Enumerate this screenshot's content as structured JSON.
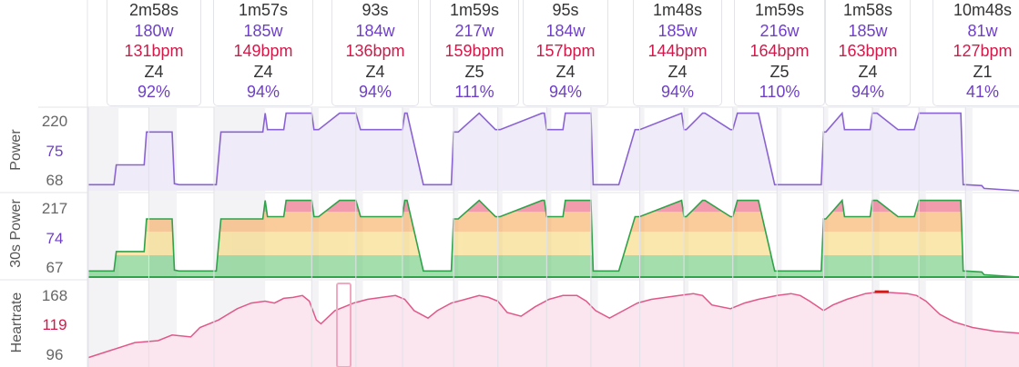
{
  "intervals": [
    {
      "dur": "2m58s",
      "power": "180w",
      "hr": "131bpm",
      "zone": "Z4",
      "pct": "92%"
    },
    {
      "dur": "1m57s",
      "power": "185w",
      "hr": "149bpm",
      "zone": "Z4",
      "pct": "94%"
    },
    {
      "dur": "93s",
      "power": "184w",
      "hr": "136bpm",
      "zone": "Z4",
      "pct": "94%"
    },
    {
      "dur": "1m59s",
      "power": "217w",
      "hr": "159bpm",
      "zone": "Z5",
      "pct": "111%"
    },
    {
      "dur": "95s",
      "power": "184w",
      "hr": "157bpm",
      "zone": "Z4",
      "pct": "94%"
    },
    {
      "dur": "1m48s",
      "power": "185w",
      "hr": "144bpm",
      "zone": "Z4",
      "pct": "94%"
    },
    {
      "dur": "1m59s",
      "power": "216w",
      "hr": "164bpm",
      "zone": "Z5",
      "pct": "110%"
    },
    {
      "dur": "1m58s",
      "power": "185w",
      "hr": "163bpm",
      "zone": "Z4",
      "pct": "94%"
    },
    {
      "dur": "10m48s",
      "power": "81w",
      "hr": "127bpm",
      "zone": "Z1",
      "pct": "41%"
    }
  ],
  "panels": {
    "power": {
      "label": "Power",
      "ticks": [
        "220",
        "75",
        "68"
      ]
    },
    "power30": {
      "label": "30s Power",
      "ticks": [
        "217",
        "74",
        "67"
      ]
    },
    "heartrate": {
      "label": "Heartrate",
      "ticks": [
        "168",
        "119",
        "96"
      ]
    }
  },
  "colors": {
    "power_line": "#8a63d2",
    "power_fill": "#efebf8",
    "hr_line": "#e0588a",
    "hr_fill": "#fbe5ee",
    "zone_green": "#5cc46a",
    "zone_yellow": "#f4d36b",
    "zone_orange": "#f6a24b",
    "zone_red": "#e84a6b"
  },
  "chart_data": [
    {
      "type": "line",
      "title": "",
      "ylabel": "Power",
      "yticks": [
        68,
        75,
        220
      ],
      "x": [
        0,
        11,
        12,
        24,
        25,
        36,
        37,
        39,
        48,
        55,
        57,
        75,
        76,
        77,
        84,
        85,
        96,
        97,
        99,
        108,
        115,
        117,
        135,
        136,
        137,
        144,
        145,
        156,
        157,
        159,
        168,
        175,
        177,
        195,
        196,
        197,
        204,
        205,
        216,
        217,
        219,
        228,
        235,
        237,
        255,
        256,
        257,
        264,
        265,
        276,
        277,
        279,
        288,
        295,
        297,
        315,
        316,
        317,
        324,
        325,
        336,
        337,
        339,
        348,
        355,
        357,
        375,
        376,
        377,
        384,
        385,
        400
      ],
      "values": [
        68,
        68,
        110,
        110,
        180,
        180,
        70,
        68,
        68,
        68,
        180,
        180,
        220,
        185,
        185,
        220,
        220,
        185,
        185,
        220,
        220,
        185,
        185,
        220,
        220,
        68,
        68,
        68,
        180,
        180,
        220,
        185,
        185,
        220,
        220,
        185,
        185,
        220,
        220,
        68,
        68,
        68,
        185,
        185,
        220,
        185,
        185,
        220,
        220,
        185,
        185,
        220,
        220,
        68,
        68,
        68,
        180,
        180,
        220,
        185,
        185,
        220,
        220,
        185,
        185,
        220,
        220,
        68,
        68,
        66,
        60,
        55
      ]
    },
    {
      "type": "area",
      "title": "",
      "ylabel": "30s Power",
      "yticks": [
        67,
        74,
        217
      ]
    },
    {
      "type": "area",
      "title": "",
      "ylabel": "Heartrate",
      "yticks": [
        96,
        119,
        168
      ]
    }
  ]
}
